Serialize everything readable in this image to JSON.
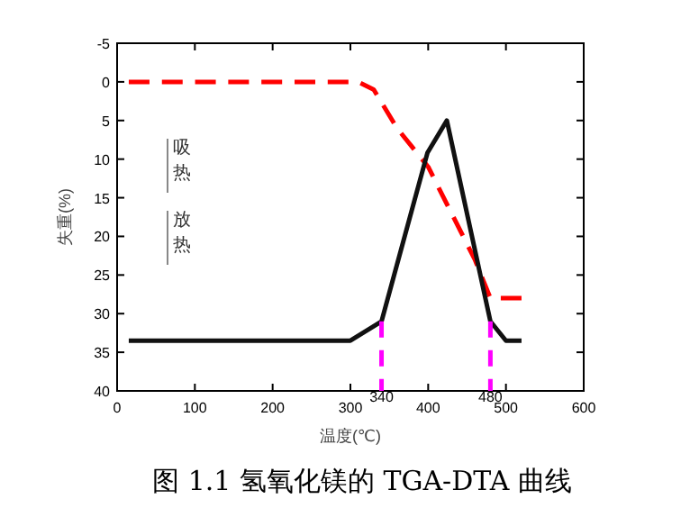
{
  "chart_data": {
    "type": "line",
    "title": "图 1.1  氢氧化镁的 TGA-DTA 曲线",
    "xlabel": "温度(℃)",
    "ylabel": "失重(%)",
    "xlim": [
      0,
      600
    ],
    "xticks": [
      0,
      100,
      200,
      300,
      400,
      500,
      600
    ],
    "ylim": [
      40,
      -5
    ],
    "yticks": [
      -5,
      0,
      5,
      10,
      15,
      20,
      25,
      30,
      35,
      40
    ],
    "series": [
      {
        "color": "#ff0000",
        "line_style": "dashed",
        "x": [
          15,
          310,
          330,
          360,
          400,
          430,
          460,
          480,
          500,
          520
        ],
        "values": [
          0,
          0,
          1,
          6,
          11,
          17,
          23,
          28,
          28,
          28
        ]
      },
      {
        "color": "#111111",
        "line_style": "solid",
        "x": [
          15,
          300,
          340,
          399,
          424,
          480,
          500,
          520
        ],
        "values": [
          33.5,
          33.5,
          31,
          9.2,
          5,
          31,
          33.5,
          33.5
        ]
      }
    ],
    "ref_lines": [
      {
        "axis": "x",
        "value": 340,
        "label": "340",
        "color": "#ff00ff",
        "line_style": "dashed"
      },
      {
        "axis": "x",
        "value": 480,
        "label": "480",
        "color": "#ff00ff",
        "line_style": "dashed"
      }
    ],
    "annotations": [
      "吸热",
      "放热"
    ],
    "grid": false
  }
}
